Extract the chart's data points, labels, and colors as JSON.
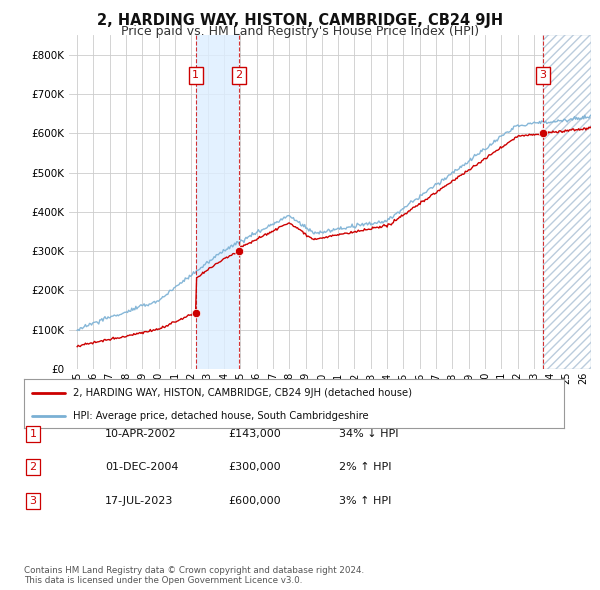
{
  "title": "2, HARDING WAY, HISTON, CAMBRIDGE, CB24 9JH",
  "subtitle": "Price paid vs. HM Land Registry's House Price Index (HPI)",
  "title_fontsize": 10.5,
  "subtitle_fontsize": 9,
  "background_color": "#ffffff",
  "grid_color": "#cccccc",
  "hpi_color": "#7ab0d4",
  "price_color": "#cc0000",
  "shade_color": "#ddeeff",
  "transactions": [
    {
      "num": 1,
      "date_num": 2002.27,
      "price": 143000
    },
    {
      "num": 2,
      "date_num": 2004.92,
      "price": 300000
    },
    {
      "num": 3,
      "date_num": 2023.54,
      "price": 600000
    }
  ],
  "table_rows": [
    {
      "num": "1",
      "date": "10-APR-2002",
      "price": "£143,000",
      "hpi": "34% ↓ HPI"
    },
    {
      "num": "2",
      "date": "01-DEC-2004",
      "price": "£300,000",
      "hpi": "2% ↑ HPI"
    },
    {
      "num": "3",
      "date": "17-JUL-2023",
      "price": "£600,000",
      "hpi": "3% ↑ HPI"
    }
  ],
  "footer": "Contains HM Land Registry data © Crown copyright and database right 2024.\nThis data is licensed under the Open Government Licence v3.0.",
  "legend_line1": "2, HARDING WAY, HISTON, CAMBRIDGE, CB24 9JH (detached house)",
  "legend_line2": "HPI: Average price, detached house, South Cambridgeshire",
  "ylim": [
    0,
    850000
  ],
  "yticks": [
    0,
    100000,
    200000,
    300000,
    400000,
    500000,
    600000,
    700000,
    800000
  ],
  "xlim_start": 1994.5,
  "xlim_end": 2026.5,
  "xticks": [
    1995,
    1996,
    1997,
    1998,
    1999,
    2000,
    2001,
    2002,
    2003,
    2004,
    2005,
    2006,
    2007,
    2008,
    2009,
    2010,
    2011,
    2012,
    2013,
    2014,
    2015,
    2016,
    2017,
    2018,
    2019,
    2020,
    2021,
    2022,
    2023,
    2024,
    2025,
    2026
  ]
}
